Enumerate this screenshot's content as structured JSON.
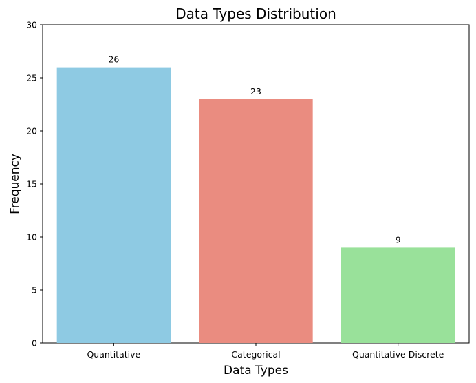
{
  "chart_data": {
    "type": "bar",
    "title": "Data Types Distribution",
    "xlabel": "Data Types",
    "ylabel": "Frequency",
    "categories": [
      "Quantitative",
      "Categorical",
      "Quantitative Discrete"
    ],
    "values": [
      26,
      23,
      9
    ],
    "data_labels": [
      "26",
      "23",
      "9"
    ],
    "ylim": [
      0,
      30
    ],
    "yticks": [
      0,
      5,
      10,
      15,
      20,
      25,
      30
    ],
    "colors": [
      "#8ecae3",
      "#ea8c80",
      "#99e19a"
    ],
    "grid": false,
    "legend": "none"
  }
}
